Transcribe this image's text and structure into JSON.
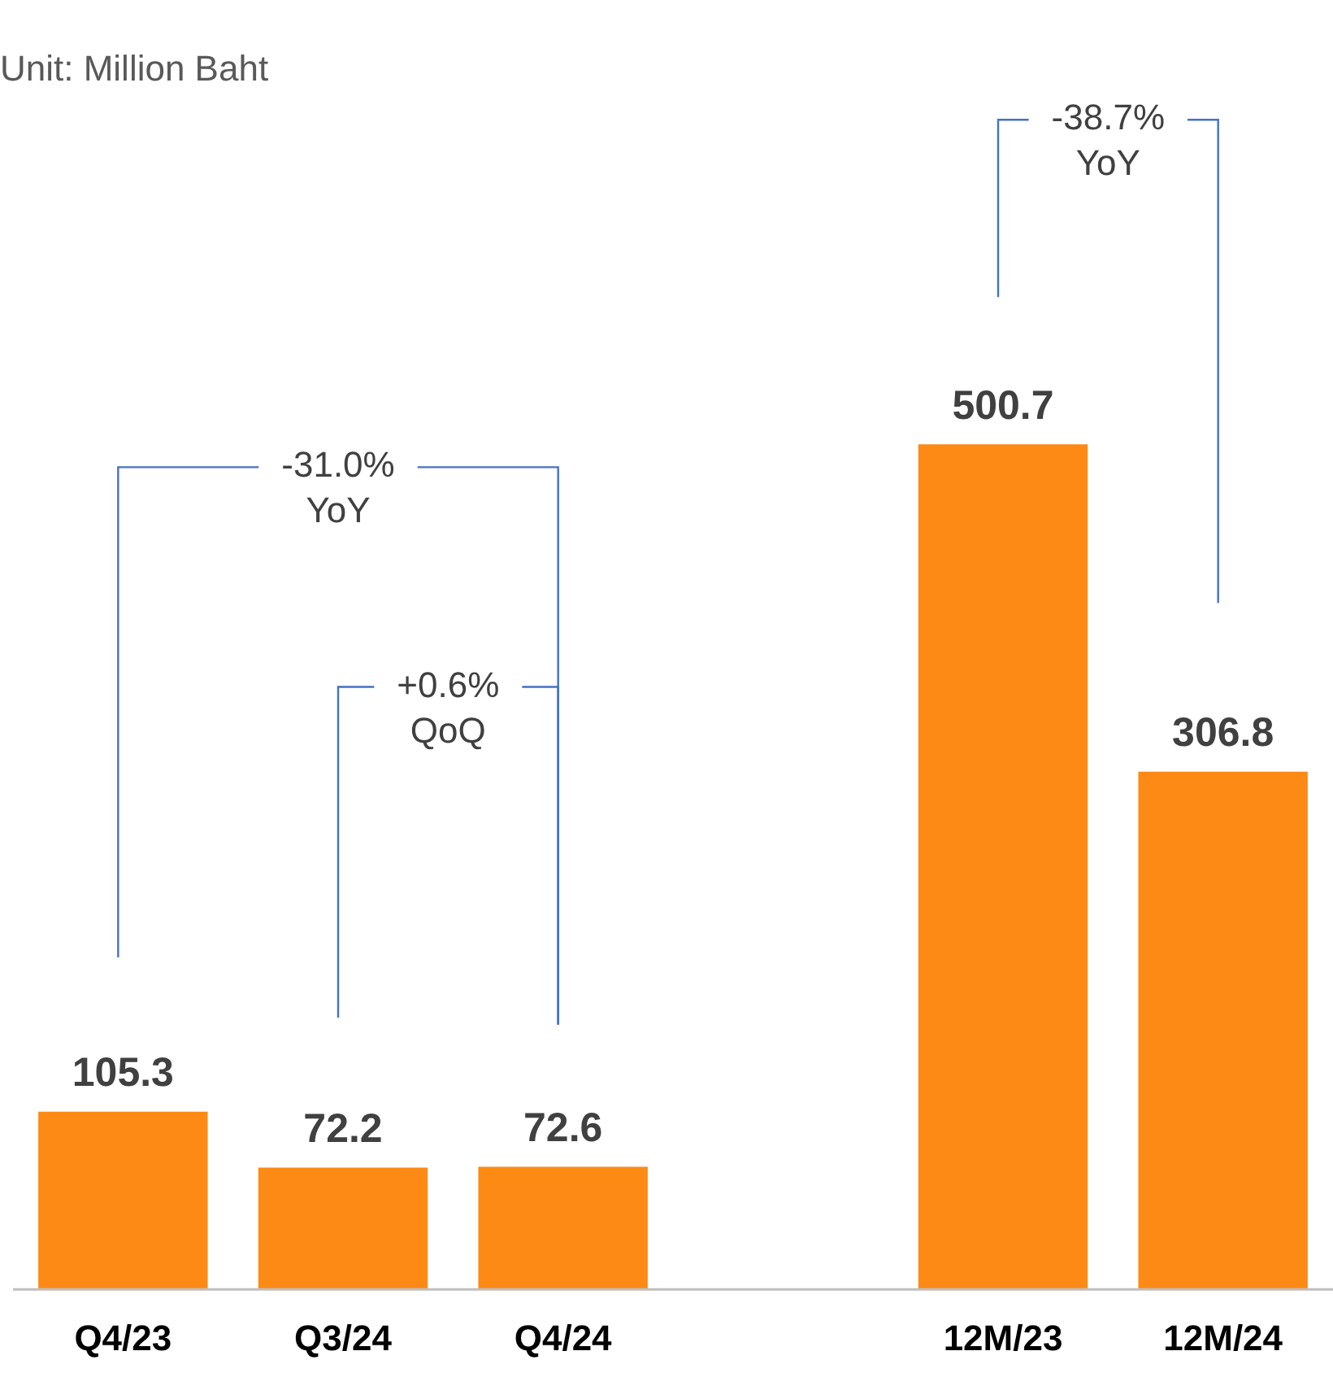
{
  "chart_data": {
    "type": "bar",
    "title": "Unit: Million Baht",
    "categories": [
      "Q4/23",
      "Q3/24",
      "Q4/24",
      null,
      "12M/23",
      "12M/24"
    ],
    "values": [
      105.3,
      72.2,
      72.6,
      null,
      500.7,
      306.8
    ],
    "color": "#fd8a14",
    "data_labels": true,
    "relative": false,
    "tick_labels": "x",
    "grid": false,
    "legend": false,
    "annotations": [
      "-31.0%\nYoY",
      "+0.6%\nQoQ",
      "-38.7%\nYoY"
    ]
  }
}
